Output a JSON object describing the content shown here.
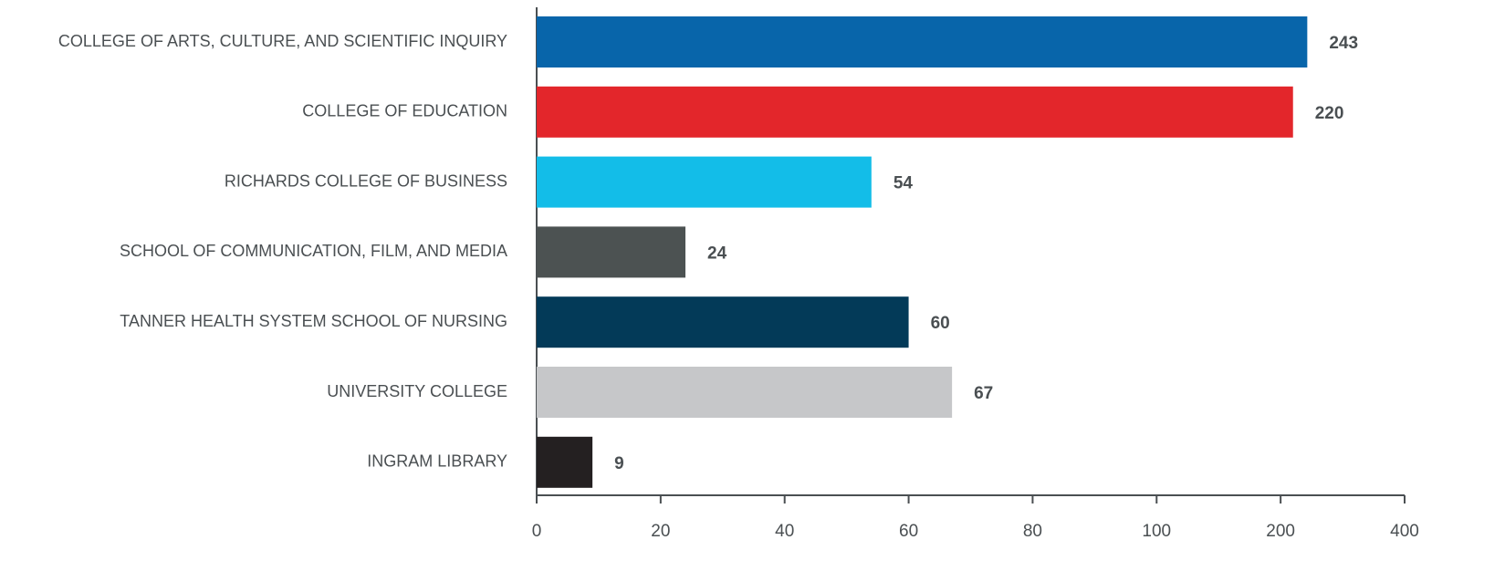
{
  "chart_data": {
    "type": "bar",
    "orientation": "horizontal",
    "categories": [
      "COLLEGE OF ARTS, CULTURE, AND SCIENTIFIC INQUIRY",
      "COLLEGE OF EDUCATION",
      "RICHARDS COLLEGE OF BUSINESS",
      "SCHOOL OF COMMUNICATION, FILM, AND MEDIA",
      "TANNER HEALTH SYSTEM SCHOOL OF NURSING",
      "UNIVERSITY COLLEGE",
      "INGRAM LIBRARY"
    ],
    "values": [
      243,
      220,
      54,
      24,
      60,
      67,
      9
    ],
    "colors": [
      "#0865aa",
      "#e3262b",
      "#13bde8",
      "#4c5252",
      "#033a58",
      "#c6c7c9",
      "#242021"
    ],
    "xlim": [
      0,
      400
    ],
    "xticks": [
      0,
      20,
      40,
      60,
      80,
      100,
      200,
      400
    ]
  }
}
